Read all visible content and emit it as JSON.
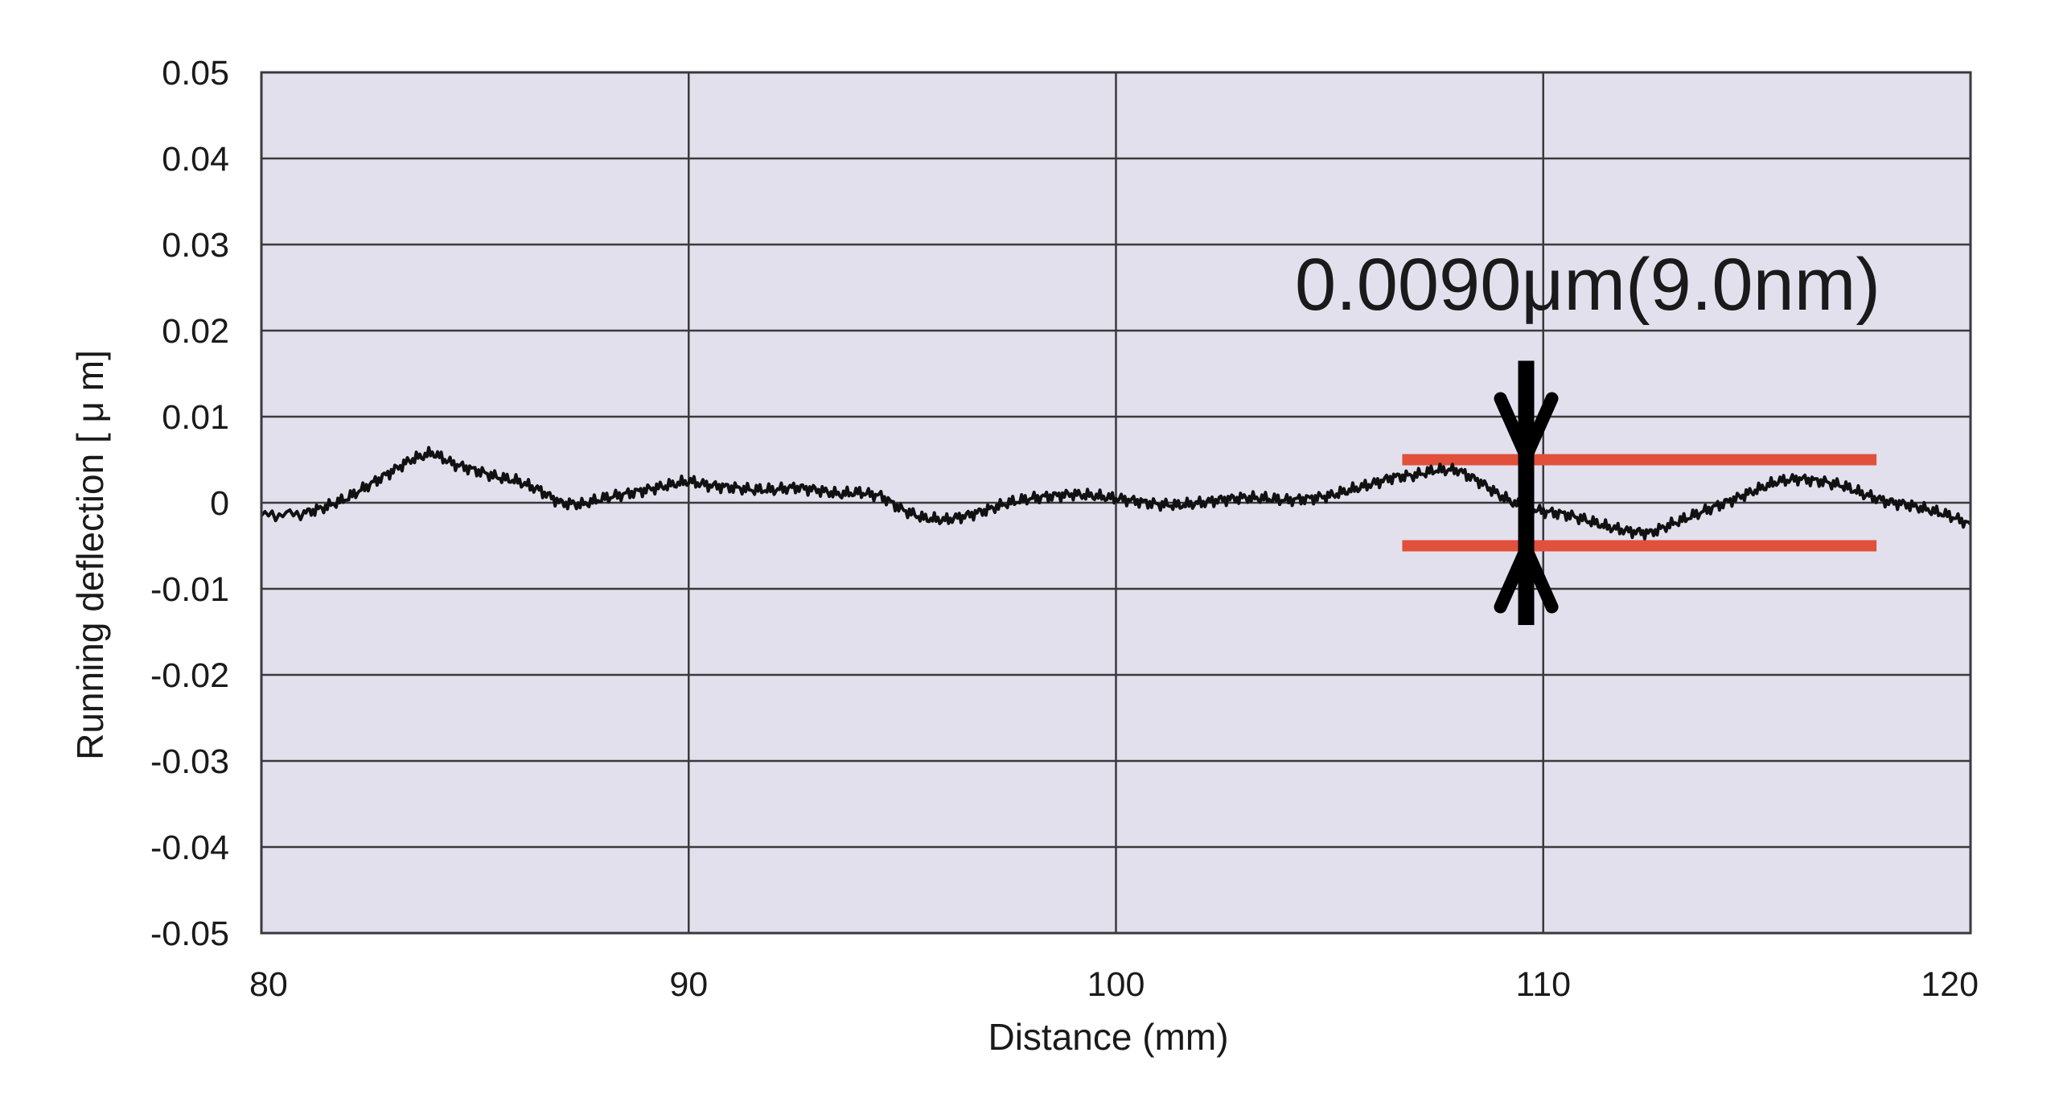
{
  "chart_data": {
    "type": "line",
    "title": "",
    "xlabel": "Distance (mm)",
    "ylabel": "Running deflection [ μ m]",
    "xlim": [
      80,
      120
    ],
    "ylim": [
      -0.05,
      0.05
    ],
    "x_ticks": [
      80,
      90,
      100,
      110,
      120
    ],
    "x_tick_labels": [
      "80",
      "90",
      "100",
      "110",
      "120"
    ],
    "y_ticks": [
      0.05,
      0.04,
      0.03,
      0.02,
      0.01,
      0,
      -0.01,
      -0.02,
      -0.03,
      -0.04,
      -0.05
    ],
    "y_tick_labels": [
      "0.05",
      "0.04",
      "0.03",
      "0.02",
      "0.01",
      "0",
      "-0.01",
      "-0.02",
      "-0.03",
      "-0.04",
      "-0.05"
    ],
    "grid": true,
    "legend": "none",
    "colors": {
      "plot_background": "#e3e0ee",
      "grid": "#3a3a3a",
      "series": "#111111",
      "bound_lines": "#e0503a",
      "arrow": "#000000"
    },
    "series": [
      {
        "x": [
          80,
          81,
          81.5,
          82,
          82.5,
          83,
          83.5,
          84,
          84.5,
          85,
          85.5,
          86,
          86.5,
          87,
          87.5,
          88,
          88.5,
          89,
          89.5,
          90,
          90.5,
          91,
          91.5,
          92,
          92.5,
          93,
          93.5,
          94,
          94.5,
          95,
          95.5,
          96,
          96.5,
          97,
          97.5,
          98,
          98.5,
          99,
          99.5,
          100,
          100.5,
          101,
          101.5,
          102,
          102.5,
          103,
          103.5,
          104,
          104.5,
          105,
          105.5,
          106,
          106.5,
          107,
          107.5,
          108,
          108.5,
          109,
          109.5,
          110,
          110.5,
          111,
          111.5,
          112,
          112.5,
          113,
          113.5,
          114,
          114.5,
          115,
          115.5,
          116,
          116.5,
          117,
          117.5,
          118,
          118.5,
          119,
          119.5,
          120
        ],
        "y": [
          -0.0015,
          -0.0012,
          -0.0005,
          0.0005,
          0.002,
          0.0035,
          0.005,
          0.0058,
          0.0045,
          0.0038,
          0.003,
          0.0025,
          0.0015,
          0.0,
          -0.0002,
          0.0005,
          0.001,
          0.0015,
          0.002,
          0.0025,
          0.002,
          0.0018,
          0.0015,
          0.0015,
          0.0018,
          0.0015,
          0.001,
          0.0012,
          0.0008,
          -0.0008,
          -0.0018,
          -0.002,
          -0.0015,
          -0.0008,
          0.0,
          0.0005,
          0.0008,
          0.001,
          0.0008,
          0.0005,
          0.0002,
          -0.0002,
          -0.0003,
          0.0,
          0.0004,
          0.0006,
          0.0005,
          0.0003,
          0.0005,
          0.0008,
          0.0015,
          0.0022,
          0.003,
          0.0032,
          0.0038,
          0.0038,
          0.0025,
          0.0008,
          -0.0005,
          -0.001,
          -0.0013,
          -0.002,
          -0.0028,
          -0.0033,
          -0.0035,
          -0.0025,
          -0.0015,
          -0.0005,
          0.0005,
          0.0015,
          0.0025,
          0.0028,
          0.0025,
          0.002,
          0.001,
          0.0002,
          -0.0002,
          -0.0008,
          -0.0015,
          -0.0025
        ]
      }
    ],
    "annotations": {
      "label": "0.0090μm(9.0nm)",
      "upper_bound": 0.005,
      "lower_bound": -0.005,
      "bound_x_range": [
        106.7,
        117.8
      ],
      "arrow_x": 109.6
    }
  }
}
